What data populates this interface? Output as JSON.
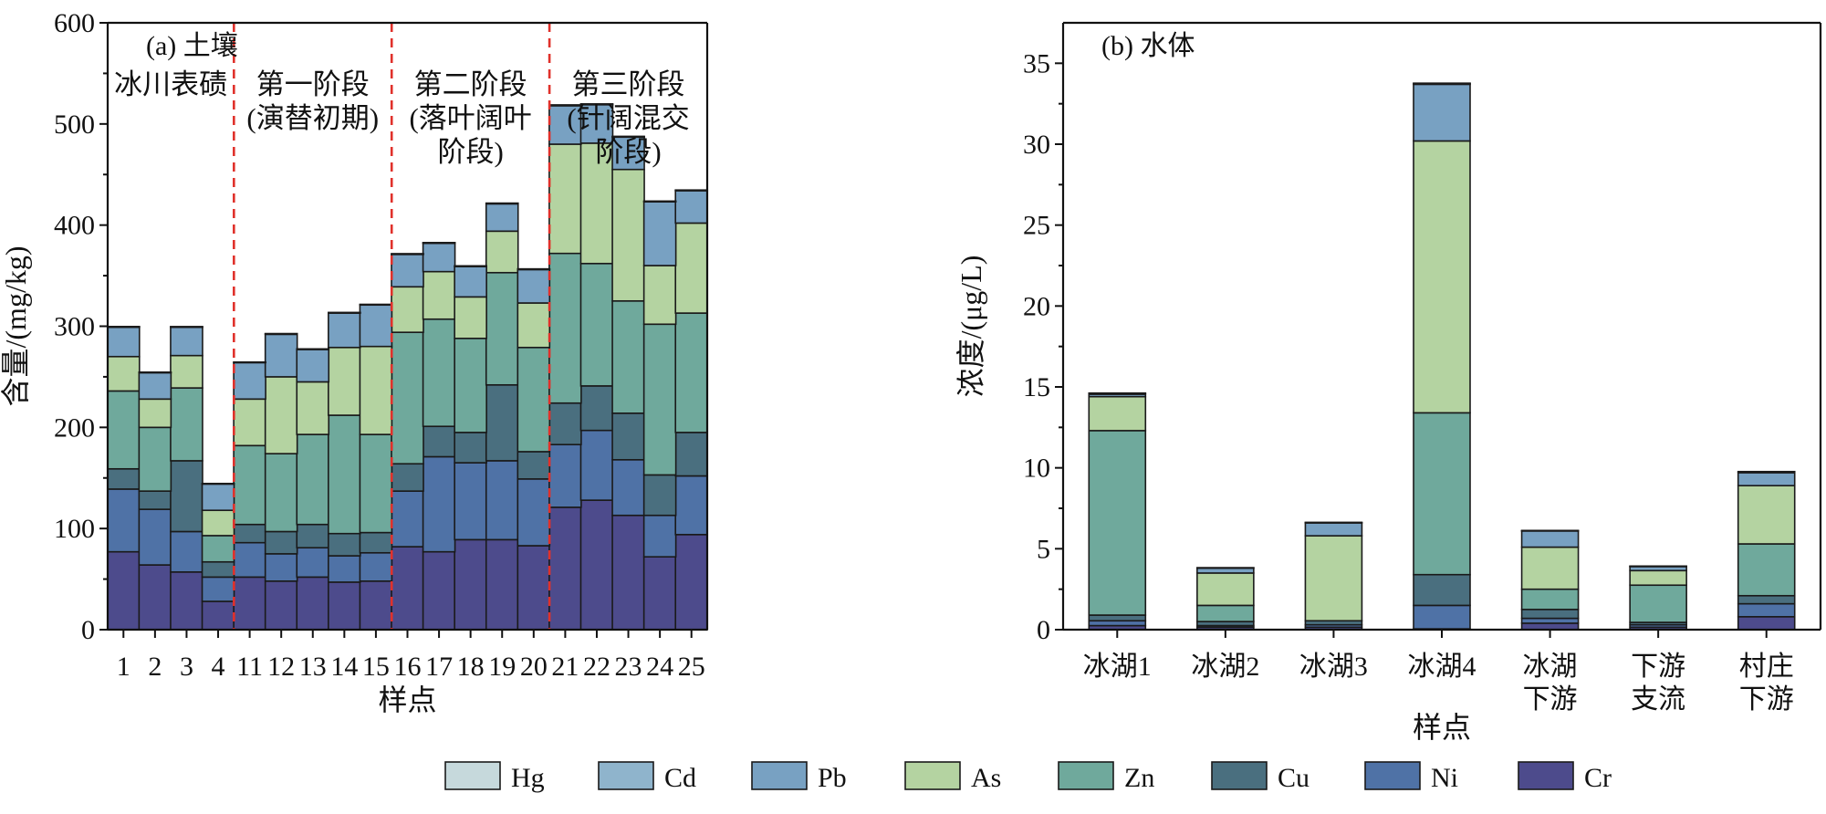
{
  "colors": {
    "Hg": "#c6d9dc",
    "Cd": "#8fb4cc",
    "Pb": "#78a1c2",
    "As": "#b4d3a1",
    "Zn": "#6fa99c",
    "Cu": "#4a6f7f",
    "Ni": "#4f72a6",
    "Cr": "#4d4b8c",
    "stage_line": "#e0312b"
  },
  "legend": [
    "Hg",
    "Cd",
    "Pb",
    "As",
    "Zn",
    "Cu",
    "Ni",
    "Cr"
  ],
  "chart_data": [
    {
      "type": "bar",
      "stacked": true,
      "panel_label": "(a) 土壤",
      "xlabel": "样点",
      "ylabel": "含量/(mg/kg)",
      "ylim": [
        0,
        600
      ],
      "yticks": [
        0,
        100,
        200,
        300,
        400,
        500,
        600
      ],
      "categories": [
        "1",
        "2",
        "3",
        "4",
        "11",
        "12",
        "13",
        "14",
        "15",
        "16",
        "17",
        "18",
        "19",
        "20",
        "21",
        "22",
        "23",
        "24",
        "25"
      ],
      "stage_labels": [
        {
          "lines": [
            "冰川表碛"
          ],
          "start_index": 0
        },
        {
          "lines": [
            "第一阶段",
            "(演替初期)"
          ],
          "start_index": 4
        },
        {
          "lines": [
            "第二阶段",
            "(落叶阔叶",
            "阶段)"
          ],
          "start_index": 9
        },
        {
          "lines": [
            "第三阶段",
            "(针阔混交",
            "阶段)"
          ],
          "start_index": 14
        }
      ],
      "series": [
        {
          "name": "Cr",
          "values": [
            77,
            64,
            57,
            28,
            52,
            48,
            52,
            47,
            48,
            82,
            77,
            89,
            89,
            83,
            121,
            128,
            113,
            72,
            94
          ]
        },
        {
          "name": "Ni",
          "values": [
            62,
            55,
            40,
            24,
            34,
            27,
            29,
            26,
            28,
            55,
            94,
            76,
            78,
            66,
            62,
            69,
            55,
            41,
            58
          ]
        },
        {
          "name": "Cu",
          "values": [
            20,
            18,
            70,
            15,
            18,
            22,
            23,
            22,
            20,
            27,
            30,
            30,
            75,
            27,
            41,
            44,
            46,
            40,
            43
          ]
        },
        {
          "name": "Zn",
          "values": [
            77,
            63,
            72,
            26,
            78,
            77,
            89,
            117,
            97,
            130,
            106,
            93,
            111,
            103,
            148,
            121,
            111,
            149,
            118
          ]
        },
        {
          "name": "As",
          "values": [
            34,
            28,
            32,
            25,
            46,
            76,
            52,
            67,
            87,
            45,
            47,
            41,
            41,
            44,
            108,
            119,
            130,
            58,
            89
          ]
        },
        {
          "name": "Pb",
          "values": [
            29,
            26,
            28,
            26,
            36,
            42,
            32,
            34,
            41,
            32,
            28,
            30,
            27,
            33,
            38,
            38,
            32,
            63,
            32
          ]
        },
        {
          "name": "Cd",
          "values": [
            0.6,
            0.5,
            0.5,
            0.4,
            0.5,
            0.6,
            0.5,
            0.5,
            0.5,
            0.6,
            0.6,
            0.6,
            0.6,
            0.6,
            0.7,
            0.7,
            0.6,
            0.6,
            0.6
          ]
        },
        {
          "name": "Hg",
          "values": [
            0.1,
            0.1,
            0.1,
            0.1,
            0.1,
            0.1,
            0.1,
            0.1,
            0.1,
            0.1,
            0.1,
            0.1,
            0.1,
            0.1,
            0.1,
            0.1,
            0.1,
            0.1,
            0.1
          ]
        }
      ]
    },
    {
      "type": "bar",
      "stacked": true,
      "panel_label": "(b) 水体",
      "xlabel": "样点",
      "ylabel": "浓度/(μg/L)",
      "ylim": [
        0,
        37.5
      ],
      "yticks": [
        0,
        5,
        10,
        15,
        20,
        25,
        30,
        35
      ],
      "categories": [
        [
          "冰湖1"
        ],
        [
          "冰湖2"
        ],
        [
          "冰湖3"
        ],
        [
          "冰湖4"
        ],
        [
          "冰湖",
          "下游"
        ],
        [
          "下游",
          "支流"
        ],
        [
          "村庄",
          "下游"
        ]
      ],
      "series": [
        {
          "name": "Cr",
          "values": [
            0.25,
            0.15,
            0.15,
            0.05,
            0.4,
            0.15,
            0.8
          ]
        },
        {
          "name": "Ni",
          "values": [
            0.3,
            0.1,
            0.15,
            1.45,
            0.3,
            0.15,
            0.8
          ]
        },
        {
          "name": "Cu",
          "values": [
            0.35,
            0.25,
            0.25,
            1.9,
            0.55,
            0.15,
            0.5
          ]
        },
        {
          "name": "Zn",
          "values": [
            11.4,
            1.0,
            0.0,
            10.0,
            1.25,
            2.3,
            3.2
          ]
        },
        {
          "name": "As",
          "values": [
            2.1,
            2.0,
            5.25,
            16.8,
            2.6,
            0.9,
            3.6
          ]
        },
        {
          "name": "Pb",
          "values": [
            0.15,
            0.3,
            0.8,
            3.5,
            1.0,
            0.25,
            0.8
          ]
        },
        {
          "name": "Cd",
          "values": [
            0.05,
            0.02,
            0.02,
            0.05,
            0.02,
            0.02,
            0.05
          ]
        },
        {
          "name": "Hg",
          "values": [
            0.02,
            0.01,
            0.01,
            0.02,
            0.01,
            0.01,
            0.02
          ]
        }
      ]
    }
  ]
}
